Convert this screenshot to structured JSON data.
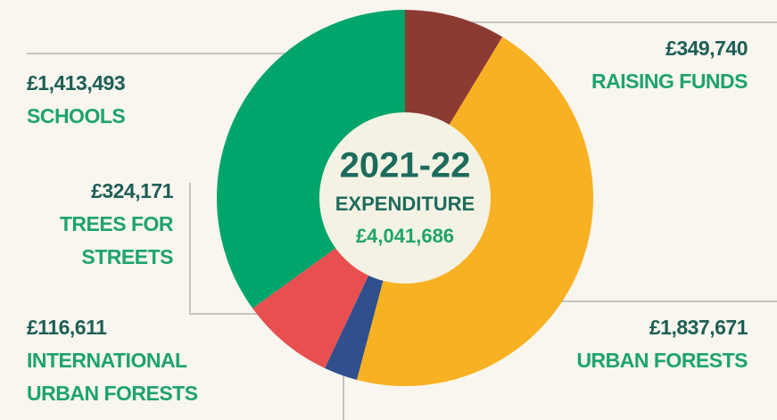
{
  "chart_data": {
    "type": "donut",
    "center_title": "2021-22",
    "center_subtitle": "EXPENDITURE",
    "center_total": "£4,041,686",
    "categories": [
      "RAISING FUNDS",
      "URBAN FORESTS",
      "INTERNATIONAL URBAN FORESTS",
      "TREES FOR STREETS",
      "SCHOOLS"
    ],
    "values": [
      349740,
      1837671,
      116611,
      324171,
      1413493
    ],
    "value_labels": [
      "£349,740",
      "£1,837,671",
      "£116,611",
      "£324,171",
      "£1,413,493"
    ],
    "colors": [
      "#8c3b33",
      "#f8b122",
      "#2f4f8d",
      "#e84f50",
      "#00a56b"
    ]
  }
}
